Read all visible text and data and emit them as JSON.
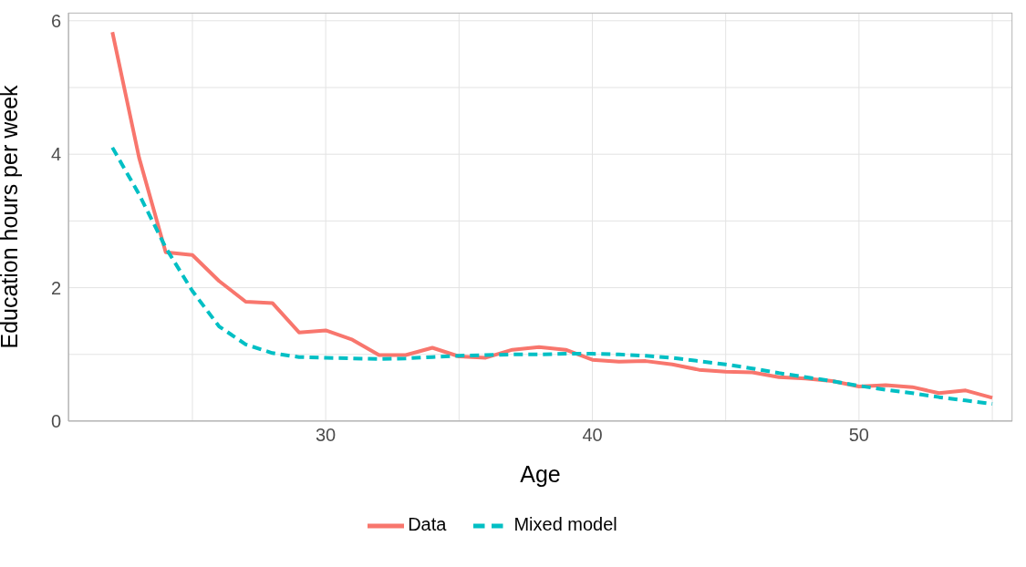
{
  "chart_data": {
    "type": "line",
    "xlabel": "Age",
    "ylabel": "Education hours per week",
    "x": [
      22,
      23,
      24,
      25,
      26,
      27,
      28,
      29,
      30,
      31,
      32,
      33,
      34,
      35,
      36,
      37,
      38,
      39,
      40,
      41,
      42,
      43,
      44,
      45,
      46,
      47,
      48,
      49,
      50,
      51,
      52,
      53,
      54,
      55
    ],
    "series": [
      {
        "name": "Data",
        "color": "#f8766d",
        "line_style": "solid",
        "values": [
          5.83,
          3.95,
          2.53,
          2.49,
          2.1,
          1.79,
          1.77,
          1.33,
          1.36,
          1.22,
          0.99,
          0.99,
          1.1,
          0.97,
          0.95,
          1.07,
          1.11,
          1.07,
          0.92,
          0.89,
          0.9,
          0.85,
          0.77,
          0.74,
          0.73,
          0.66,
          0.64,
          0.6,
          0.52,
          0.54,
          0.51,
          0.42,
          0.46,
          0.35
        ]
      },
      {
        "name": "Mixed model",
        "color": "#00bfc4",
        "line_style": "dashed",
        "values": [
          4.1,
          3.4,
          2.6,
          1.95,
          1.42,
          1.15,
          1.02,
          0.96,
          0.95,
          0.94,
          0.93,
          0.94,
          0.96,
          0.98,
          0.99,
          1.0,
          1.0,
          1.01,
          1.01,
          1.0,
          0.98,
          0.95,
          0.9,
          0.85,
          0.79,
          0.72,
          0.66,
          0.6,
          0.53,
          0.47,
          0.42,
          0.36,
          0.31,
          0.26
        ]
      }
    ],
    "xlim": [
      20.35,
      55.75
    ],
    "xticks": [
      {
        "value": 25,
        "label": null
      },
      30,
      {
        "value": 35,
        "label": null
      },
      40,
      {
        "value": 45,
        "label": null
      },
      50,
      {
        "value": 55,
        "label": null
      }
    ],
    "ylim": [
      0,
      6.12
    ],
    "yticks": [
      0,
      {
        "value": 1,
        "label": null
      },
      2,
      {
        "value": 3,
        "label": null
      },
      4,
      {
        "value": 5,
        "label": null
      },
      6
    ],
    "grid": true,
    "legend": "bottom",
    "marker": "none"
  }
}
